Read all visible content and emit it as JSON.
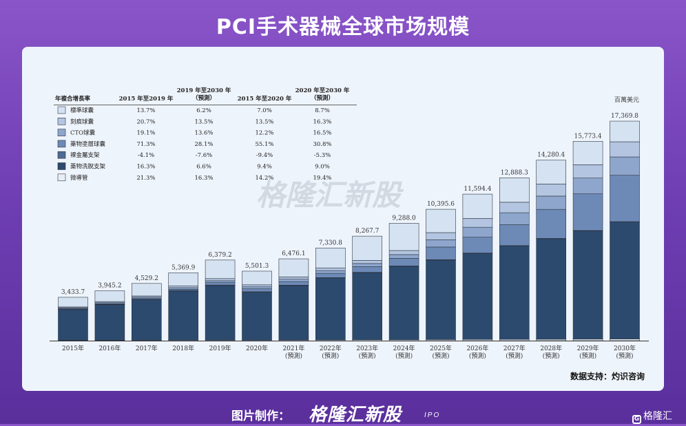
{
  "page": {
    "title": "PCI手术器械全球市场规模",
    "watermark": "格隆汇新股",
    "source_note": "数据支持：灼识咨询",
    "footer_label": "图片制作：",
    "footer_brand": "格隆汇新股",
    "footer_ipo": "IPO",
    "corner_logo": "格隆汇"
  },
  "chart_data": {
    "type": "bar",
    "stacked": true,
    "unit": "百萬美元",
    "categories": [
      "2015年",
      "2016年",
      "2017年",
      "2018年",
      "2019年",
      "2020年",
      "2021年\n(預測)",
      "2022年\n(預測)",
      "2023年\n(預測)",
      "2024年\n(預測)",
      "2025年\n(預測)",
      "2026年\n(預測)",
      "2027年\n(預測)",
      "2028年\n(預測)",
      "2029年\n(預測)",
      "2030年\n(預測)"
    ],
    "totals": [
      "3,433.7",
      "3,945.2",
      "4,529.2",
      "5,369.9",
      "6,379.2",
      "5,501.3",
      "6,476.1",
      "7,330.8",
      "8,267.7",
      "9,288.0",
      "10,395.6",
      "11,594.4",
      "12,888.3",
      "14,280.4",
      "15,773.4",
      "17,369.8"
    ],
    "ylim": [
      0,
      17369.8
    ],
    "series": [
      {
        "name": "微導管",
        "color": "#e9eef5",
        "values": [
          30,
          34,
          38,
          44,
          50,
          52,
          58,
          64,
          72,
          80,
          88,
          96,
          104,
          112,
          120,
          130
        ]
      },
      {
        "name": "藥物洗脫支架",
        "color": "#2c4a6e",
        "values": [
          2430,
          2810,
          3190,
          3880,
          4310,
          3780,
          4300,
          4890,
          5300,
          5800,
          6290,
          6810,
          7390,
          7950,
          8570,
          9260
        ]
      },
      {
        "name": "裸金屬支架",
        "color": "#4d6b94",
        "values": [
          50,
          48,
          46,
          44,
          42,
          38,
          36,
          34,
          32,
          31,
          30,
          29,
          28,
          27,
          26,
          25
        ]
      },
      {
        "name": "藥物塗層球囊",
        "color": "#6d89b6",
        "values": [
          20,
          30,
          60,
          100,
          190,
          230,
          280,
          340,
          450,
          600,
          1000,
          1250,
          1650,
          2300,
          2900,
          3670
        ]
      },
      {
        "name": "CTO球囊",
        "color": "#8ea6cc",
        "values": [
          80,
          95,
          105,
          125,
          150,
          160,
          190,
          220,
          250,
          300,
          580,
          790,
          950,
          1050,
          1250,
          1450
        ]
      },
      {
        "name": "刻痕球囊",
        "color": "#b3c5e0",
        "values": [
          60,
          80,
          100,
          130,
          170,
          160,
          180,
          210,
          250,
          320,
          560,
          700,
          830,
          950,
          1050,
          1200
        ]
      },
      {
        "name": "標準球囊",
        "color": "#d5e2f1",
        "values": [
          763.7,
          848.2,
          990.2,
          1046.9,
          1467.2,
          1081.3,
          1432.1,
          1572.8,
          1915.7,
          2157,
          1847.6,
          1919.4,
          1936.3,
          1891.4,
          1857.4,
          1634.8
        ]
      }
    ],
    "cagr_table": {
      "header": [
        "年複合增長率",
        "2015 年至2019 年",
        "2019 年至2030 年\n（預測）",
        "2015 年至2020 年",
        "2020 年至2030 年\n（預測）"
      ],
      "rows": [
        {
          "label": "標準球囊",
          "color": "#d5e2f1",
          "values": [
            "13.7%",
            "6.2%",
            "7.0%",
            "8.7%"
          ]
        },
        {
          "label": "刻痕球囊",
          "color": "#b3c5e0",
          "values": [
            "20.7%",
            "13.5%",
            "13.5%",
            "16.3%"
          ]
        },
        {
          "label": "CTO球囊",
          "color": "#8ea6cc",
          "values": [
            "19.1%",
            "13.6%",
            "12.2%",
            "16.5%"
          ]
        },
        {
          "label": "藥物塗層球囊",
          "color": "#6d89b6",
          "values": [
            "71.3%",
            "28.1%",
            "55.1%",
            "30.8%"
          ]
        },
        {
          "label": "裸金屬支架",
          "color": "#4d6b94",
          "values": [
            "-4.1%",
            "-7.6%",
            "-9.4%",
            "-5.3%"
          ]
        },
        {
          "label": "藥物洗脫支架",
          "color": "#2c4a6e",
          "values": [
            "16.3%",
            "6.6%",
            "9.4%",
            "9.0%"
          ]
        },
        {
          "label": "微導管",
          "color": "#e9eef5",
          "values": [
            "21.3%",
            "16.3%",
            "14.2%",
            "19.4%"
          ]
        }
      ]
    }
  }
}
